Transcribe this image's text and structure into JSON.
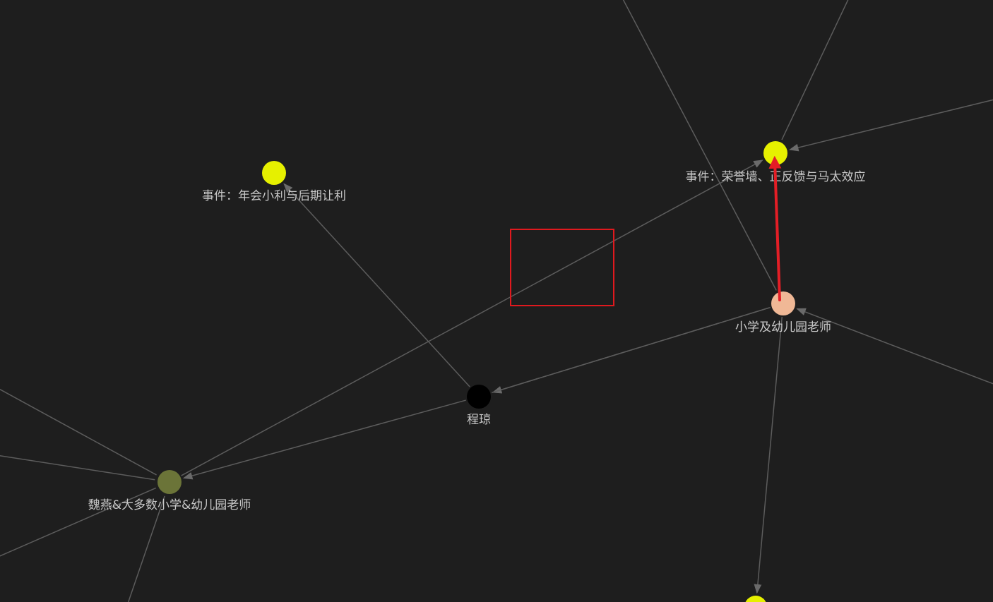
{
  "graph": {
    "background": "#1e1e1e",
    "edge_color": "#5c5c5c",
    "label_color": "#c8c8c8",
    "nodes": [
      {
        "id": "event-year-end",
        "label": "事件：年会小利与后期让利",
        "color": "#e6f000"
      },
      {
        "id": "event-honor-wall",
        "label": "事件：荣誉墙、正反馈与马太效应",
        "color": "#e6f000"
      },
      {
        "id": "teacher",
        "label": "小学及幼儿园老师",
        "color": "#f0b896"
      },
      {
        "id": "chengqiong",
        "label": "程琼",
        "color": "#000000"
      },
      {
        "id": "weiyan-group",
        "label": "魏燕&大多数小学&幼儿园老师",
        "color": "#6b7438"
      },
      {
        "id": "event-bottom",
        "label": "",
        "color": "#e6f000"
      }
    ],
    "edges": [
      {
        "source": "chengqiong",
        "target": "event-year-end",
        "arrow": true
      },
      {
        "source": "weiyan-group",
        "target": "event-honor-wall",
        "arrow": true
      },
      {
        "source": "teacher",
        "target": "chengqiong",
        "arrow": true
      },
      {
        "source": "chengqiong",
        "target": "teacher",
        "arrow": false
      },
      {
        "source": "chengqiong",
        "target": "weiyan-group",
        "arrow": true
      },
      {
        "source": "teacher",
        "target": "event-bottom",
        "arrow": true
      },
      {
        "source": "offscreen-top-a",
        "target": "teacher",
        "arrow": false
      },
      {
        "source": "offscreen-top-b",
        "target": "event-honor-wall",
        "arrow": false
      },
      {
        "source": "offscreen-right-a",
        "target": "event-honor-wall",
        "arrow": true
      },
      {
        "source": "offscreen-right-b",
        "target": "teacher",
        "arrow": true
      },
      {
        "source": "offscreen-left-a",
        "target": "weiyan-group",
        "arrow": false
      },
      {
        "source": "offscreen-left-b",
        "target": "weiyan-group",
        "arrow": false
      },
      {
        "source": "offscreen-left-c",
        "target": "weiyan-group",
        "arrow": false
      },
      {
        "source": "offscreen-bottom-a",
        "target": "weiyan-group",
        "arrow": false
      }
    ]
  },
  "annotations": {
    "highlight_box_color": "#e0191e",
    "arrow_color": "#e41e26"
  }
}
